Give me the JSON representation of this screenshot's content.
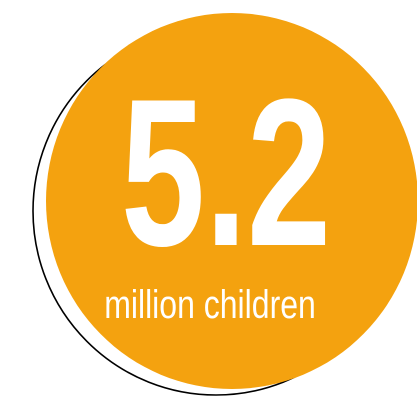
{
  "badge": {
    "number": "5.2",
    "caption": "million children",
    "fill_color": "#F4A20F",
    "outline_color": "#000000",
    "text_color": "#FFFFFF"
  }
}
